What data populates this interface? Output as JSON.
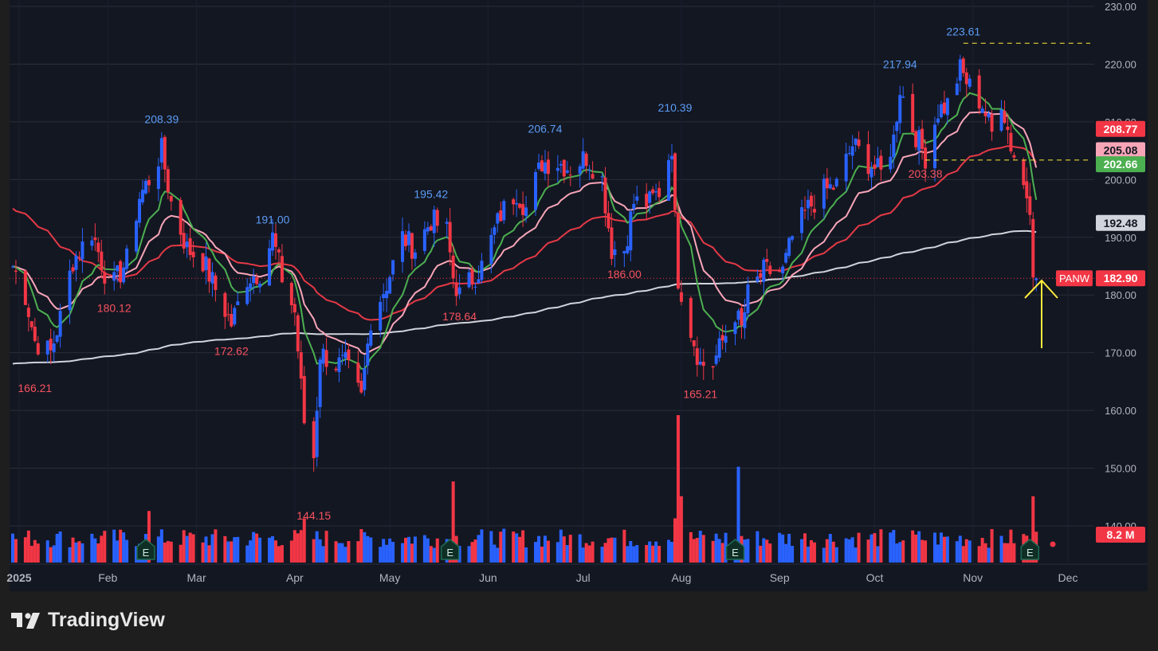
{
  "brand": {
    "name": "TradingView"
  },
  "colors": {
    "background": "#131722",
    "frame": "#1e1e1e",
    "up": "#2962ff",
    "down": "#f23645",
    "ma_green": "#4caf50",
    "ma_pink": "#f8a5b8",
    "ma_red": "#e53946",
    "ma_white": "#d1d4dc",
    "arrow": "#ffeb3b",
    "grid": "#2a2e39",
    "axis_text": "#d1d4dc"
  },
  "chart_data": {
    "type": "candlestick",
    "symbol": "PANW",
    "last_price": 182.9,
    "last_price_label": "182.90",
    "volume_label": "8.2 M",
    "x_ticks": [
      "2025",
      "Feb",
      "Mar",
      "Apr",
      "May",
      "Jun",
      "Jul",
      "Aug",
      "Sep",
      "Oct",
      "Nov",
      "Dec"
    ],
    "y_ticks": [
      "230.00",
      "220.00",
      "210.00",
      "200.00",
      "190.00",
      "180.00",
      "170.00",
      "160.00",
      "150.00",
      "140.00"
    ],
    "ylim": [
      134,
      231
    ],
    "price_tags": [
      {
        "label": "208.77",
        "value": 208.77,
        "color": "#f23645"
      },
      {
        "label": "205.08",
        "value": 205.08,
        "color": "#f8a5b8"
      },
      {
        "label": "202.66",
        "value": 202.66,
        "color": "#4caf50"
      },
      {
        "label": "192.48",
        "value": 192.48,
        "color": "#d1d4dc"
      }
    ],
    "annotations": [
      {
        "text": "166.21",
        "date": "2025-01-09",
        "value": 166.21,
        "kind": "low"
      },
      {
        "text": "180.12",
        "date": "2025-02-03",
        "value": 180.12,
        "kind": "low"
      },
      {
        "text": "208.39",
        "date": "2025-02-18",
        "value": 208.39,
        "kind": "high"
      },
      {
        "text": "172.62",
        "date": "2025-03-12",
        "value": 172.62,
        "kind": "low"
      },
      {
        "text": "191.00",
        "date": "2025-03-25",
        "value": 191.0,
        "kind": "high"
      },
      {
        "text": "144.15",
        "date": "2025-04-07",
        "value": 144.15,
        "kind": "low"
      },
      {
        "text": "195.42",
        "date": "2025-05-14",
        "value": 195.42,
        "kind": "high"
      },
      {
        "text": "178.64",
        "date": "2025-05-23",
        "value": 178.64,
        "kind": "low"
      },
      {
        "text": "206.74",
        "date": "2025-06-19",
        "value": 206.74,
        "kind": "high"
      },
      {
        "text": "186.00",
        "date": "2025-07-14",
        "value": 186.0,
        "kind": "low"
      },
      {
        "text": "210.39",
        "date": "2025-07-30",
        "value": 210.39,
        "kind": "high"
      },
      {
        "text": "165.21",
        "date": "2025-08-07",
        "value": 165.21,
        "kind": "low"
      },
      {
        "text": "217.94",
        "date": "2025-10-09",
        "value": 217.94,
        "kind": "high"
      },
      {
        "text": "203.38",
        "date": "2025-10-17",
        "value": 203.38,
        "kind": "low"
      },
      {
        "text": "223.61",
        "date": "2025-10-29",
        "value": 223.61,
        "kind": "high"
      }
    ],
    "horizontal_levels": [
      {
        "value": 223.61,
        "from": "2025-10-29",
        "style": "dashed",
        "color": "#ffeb3b"
      },
      {
        "value": 203.38,
        "from": "2025-10-17",
        "style": "dashed",
        "color": "#ffeb3b"
      }
    ],
    "earnings_markers": [
      {
        "label": "E",
        "date": "2025-02-13"
      },
      {
        "label": "E",
        "date": "2025-05-20"
      },
      {
        "label": "E",
        "date": "2025-08-18"
      },
      {
        "label": "E",
        "date": "2025-11-19"
      }
    ],
    "close_keypoints": [
      [
        "2025-01-02",
        185
      ],
      [
        "2025-01-06",
        180
      ],
      [
        "2025-01-09",
        172
      ],
      [
        "2025-01-14",
        170
      ],
      [
        "2025-01-17",
        176
      ],
      [
        "2025-01-21",
        186
      ],
      [
        "2025-01-27",
        191
      ],
      [
        "2025-01-31",
        184
      ],
      [
        "2025-02-03",
        182
      ],
      [
        "2025-02-07",
        186
      ],
      [
        "2025-02-11",
        197
      ],
      [
        "2025-02-14",
        200
      ],
      [
        "2025-02-18",
        205
      ],
      [
        "2025-02-21",
        196
      ],
      [
        "2025-02-26",
        188
      ],
      [
        "2025-03-03",
        186
      ],
      [
        "2025-03-07",
        181
      ],
      [
        "2025-03-12",
        175
      ],
      [
        "2025-03-17",
        183
      ],
      [
        "2025-03-21",
        184
      ],
      [
        "2025-03-25",
        190
      ],
      [
        "2025-03-28",
        183
      ],
      [
        "2025-04-01",
        177
      ],
      [
        "2025-04-03",
        164
      ],
      [
        "2025-04-04",
        158
      ],
      [
        "2025-04-07",
        152
      ],
      [
        "2025-04-09",
        170
      ],
      [
        "2025-04-14",
        168
      ],
      [
        "2025-04-17",
        168
      ],
      [
        "2025-04-22",
        162
      ],
      [
        "2025-04-25",
        176
      ],
      [
        "2025-04-30",
        182
      ],
      [
        "2025-05-05",
        190
      ],
      [
        "2025-05-09",
        188
      ],
      [
        "2025-05-14",
        193
      ],
      [
        "2025-05-19",
        191
      ],
      [
        "2025-05-21",
        183
      ],
      [
        "2025-05-23",
        180
      ],
      [
        "2025-05-30",
        185
      ],
      [
        "2025-06-05",
        194
      ],
      [
        "2025-06-10",
        198
      ],
      [
        "2025-06-13",
        195
      ],
      [
        "2025-06-18",
        203
      ],
      [
        "2025-06-23",
        203
      ],
      [
        "2025-06-27",
        202
      ],
      [
        "2025-07-02",
        204
      ],
      [
        "2025-07-07",
        200
      ],
      [
        "2025-07-10",
        188
      ],
      [
        "2025-07-14",
        188
      ],
      [
        "2025-07-17",
        196
      ],
      [
        "2025-07-22",
        196
      ],
      [
        "2025-07-25",
        198
      ],
      [
        "2025-07-29",
        206
      ],
      [
        "2025-07-30",
        193
      ],
      [
        "2025-07-31",
        183
      ],
      [
        "2025-08-04",
        174
      ],
      [
        "2025-08-07",
        168
      ],
      [
        "2025-08-11",
        168
      ],
      [
        "2025-08-14",
        172
      ],
      [
        "2025-08-18",
        177
      ],
      [
        "2025-08-20",
        174
      ],
      [
        "2025-08-22",
        180
      ],
      [
        "2025-08-27",
        184
      ],
      [
        "2025-09-02",
        184
      ],
      [
        "2025-09-05",
        190
      ],
      [
        "2025-09-10",
        195
      ],
      [
        "2025-09-15",
        198
      ],
      [
        "2025-09-19",
        199
      ],
      [
        "2025-09-24",
        206
      ],
      [
        "2025-09-29",
        203
      ],
      [
        "2025-10-03",
        201
      ],
      [
        "2025-10-07",
        207
      ],
      [
        "2025-10-09",
        216
      ],
      [
        "2025-10-13",
        209
      ],
      [
        "2025-10-17",
        204
      ],
      [
        "2025-10-21",
        212
      ],
      [
        "2025-10-24",
        213
      ],
      [
        "2025-10-28",
        219
      ],
      [
        "2025-10-31",
        216
      ],
      [
        "2025-11-04",
        213
      ],
      [
        "2025-11-07",
        208
      ],
      [
        "2025-11-10",
        214
      ],
      [
        "2025-11-13",
        206
      ],
      [
        "2025-11-17",
        199
      ],
      [
        "2025-11-19",
        196
      ],
      [
        "2025-11-20",
        185
      ],
      [
        "2025-11-21",
        182.9
      ]
    ],
    "volume_spikes": [
      {
        "date": "2025-02-14",
        "relative": 0.35
      },
      {
        "date": "2025-04-04",
        "relative": 0.3
      },
      {
        "date": "2025-05-21",
        "relative": 0.55
      },
      {
        "date": "2025-07-30",
        "relative": 0.3
      },
      {
        "date": "2025-07-31",
        "relative": 1.0
      },
      {
        "date": "2025-08-01",
        "relative": 0.45
      },
      {
        "date": "2025-08-19",
        "relative": 0.65
      },
      {
        "date": "2025-11-20",
        "relative": 0.45
      }
    ]
  }
}
